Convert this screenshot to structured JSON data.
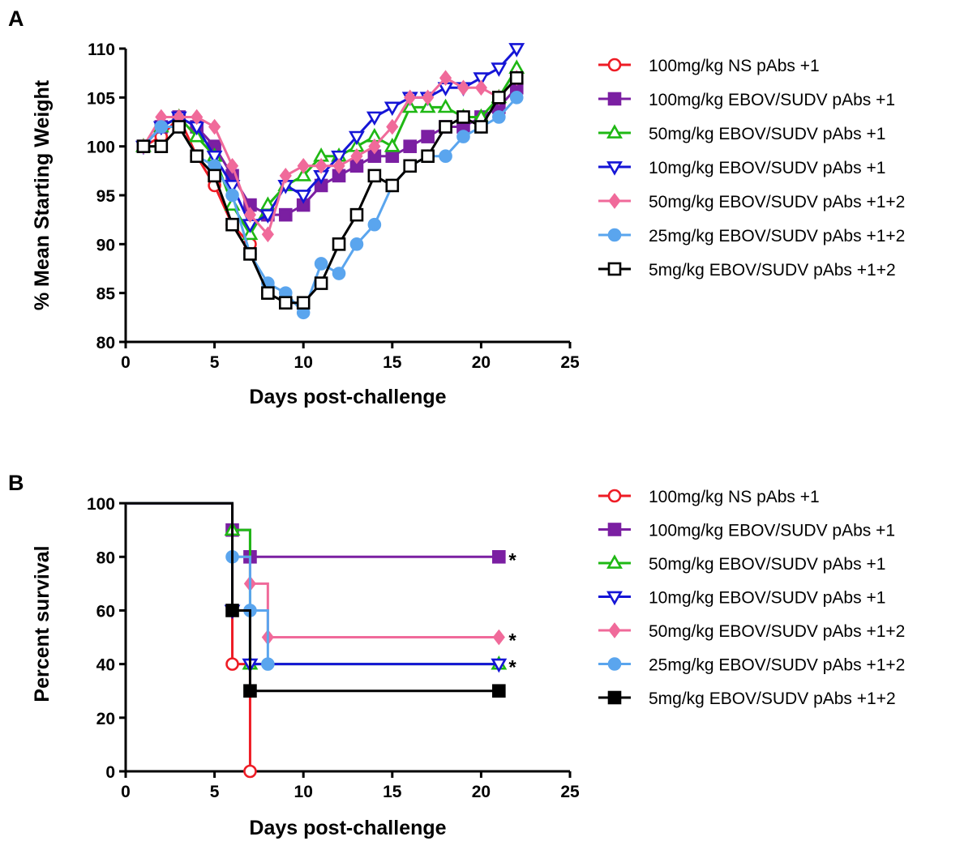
{
  "chart_data": [
    {
      "panel": "A",
      "type": "line",
      "xlabel": "Days post-challenge",
      "ylabel": "% Mean Starting Weight",
      "xlim": [
        0,
        25
      ],
      "ylim": [
        80,
        110
      ],
      "xticks": [
        "0",
        "5",
        "10",
        "15",
        "20",
        "25"
      ],
      "yticks": [
        "80",
        "85",
        "90",
        "95",
        "100",
        "105",
        "110"
      ],
      "grid": false,
      "legend_position": "right",
      "series": [
        {
          "name": "100mg/kg NS pAbs +1",
          "color": "#ee1c25",
          "marker": "circle-open",
          "x": [
            1,
            2,
            3,
            4,
            5,
            6,
            7
          ],
          "y": [
            100,
            101,
            103,
            99,
            96,
            92,
            90
          ]
        },
        {
          "name": "100mg/kg EBOV/SUDV pAbs +1",
          "color": "#7b1fa2",
          "marker": "square-filled",
          "x": [
            1,
            2,
            3,
            4,
            5,
            6,
            7,
            8,
            9,
            10,
            11,
            12,
            13,
            14,
            15,
            16,
            17,
            18,
            19,
            20,
            21,
            22
          ],
          "y": [
            100,
            102,
            103,
            102,
            100,
            97,
            94,
            93,
            93,
            94,
            96,
            97,
            98,
            99,
            99,
            100,
            101,
            102,
            102,
            103,
            104,
            106
          ]
        },
        {
          "name": "50mg/kg EBOV/SUDV pAbs +1",
          "color": "#1fb814",
          "marker": "triangle-up-open",
          "x": [
            1,
            2,
            3,
            4,
            5,
            6,
            7,
            8,
            9,
            10,
            11,
            12,
            13,
            14,
            15,
            16,
            17,
            18,
            19,
            20,
            21,
            22
          ],
          "y": [
            100,
            102,
            103,
            101,
            99,
            94,
            91,
            94,
            96,
            97,
            99,
            99,
            100,
            101,
            100,
            104,
            104,
            104,
            103,
            103,
            105,
            108
          ]
        },
        {
          "name": "10mg/kg EBOV/SUDV pAbs +1",
          "color": "#1515d6",
          "marker": "triangle-down-open",
          "x": [
            1,
            2,
            3,
            4,
            5,
            6,
            7,
            8,
            9,
            10,
            11,
            12,
            13,
            14,
            15,
            16,
            17,
            18,
            19,
            20,
            21,
            22
          ],
          "y": [
            100,
            102,
            103,
            102,
            99,
            96,
            92,
            93,
            96,
            95,
            97,
            99,
            101,
            103,
            104,
            105,
            105,
            106,
            106,
            107,
            108,
            110
          ]
        },
        {
          "name": "50mg/kg EBOV/SUDV pAbs +1+2",
          "color": "#f06a9a",
          "marker": "diamond-filled",
          "x": [
            1,
            2,
            3,
            4,
            5,
            6,
            7,
            8,
            9,
            10,
            11,
            12,
            13,
            14,
            15,
            16,
            17,
            18,
            19,
            20,
            21,
            22
          ],
          "y": [
            100,
            103,
            103,
            103,
            102,
            98,
            93,
            91,
            97,
            98,
            98,
            98,
            99,
            100,
            102,
            105,
            105,
            107,
            106,
            106,
            105,
            107
          ]
        },
        {
          "name": "25mg/kg EBOV/SUDV pAbs +1+2",
          "color": "#5aa5ee",
          "marker": "circle-filled",
          "x": [
            1,
            2,
            3,
            4,
            5,
            6,
            7,
            8,
            9,
            10,
            11,
            12,
            13,
            14,
            15,
            16,
            17,
            18,
            19,
            20,
            21,
            22
          ],
          "y": [
            100,
            102,
            102,
            99,
            98,
            95,
            89,
            86,
            85,
            83,
            88,
            87,
            90,
            92,
            96,
            98,
            99,
            99,
            101,
            102,
            103,
            105
          ]
        },
        {
          "name": "5mg/kg EBOV/SUDV pAbs +1+2",
          "color": "#000000",
          "marker": "square-open",
          "x": [
            1,
            2,
            3,
            4,
            5,
            6,
            7,
            8,
            9,
            10,
            11,
            12,
            13,
            14,
            15,
            16,
            17,
            18,
            19,
            20,
            21,
            22
          ],
          "y": [
            100,
            100,
            102,
            99,
            97,
            92,
            89,
            85,
            84,
            84,
            86,
            90,
            93,
            97,
            96,
            98,
            99,
            102,
            103,
            102,
            105,
            107
          ]
        }
      ]
    },
    {
      "panel": "B",
      "type": "line",
      "subtype": "step",
      "xlabel": "Days post-challenge",
      "ylabel": "Percent survival",
      "xlim": [
        0,
        25
      ],
      "ylim": [
        0,
        110
      ],
      "xticks": [
        "0",
        "5",
        "10",
        "15",
        "20",
        "25"
      ],
      "yticks": [
        "0",
        "20",
        "40",
        "60",
        "80",
        "100"
      ],
      "grid": false,
      "legend_position": "right",
      "series": [
        {
          "name": "100mg/kg NS pAbs +1",
          "color": "#ee1c25",
          "marker": "circle-open",
          "steps": [
            [
              0,
              100
            ],
            [
              6,
              40
            ],
            [
              7,
              0
            ]
          ],
          "end_x": 7,
          "star": ""
        },
        {
          "name": "100mg/kg EBOV/SUDV pAbs +1",
          "color": "#7b1fa2",
          "marker": "square-filled",
          "steps": [
            [
              0,
              100
            ],
            [
              6,
              90
            ],
            [
              7,
              80
            ]
          ],
          "end_x": 21,
          "star": "*"
        },
        {
          "name": "50mg/kg EBOV/SUDV pAbs +1",
          "color": "#1fb814",
          "marker": "triangle-up-open",
          "steps": [
            [
              0,
              100
            ],
            [
              6,
              90
            ],
            [
              7,
              40
            ]
          ],
          "end_x": 21,
          "star": "*"
        },
        {
          "name": "10mg/kg EBOV/SUDV pAbs +1",
          "color": "#1515d6",
          "marker": "triangle-down-open",
          "steps": [
            [
              0,
              100
            ],
            [
              6,
              60
            ],
            [
              7,
              40
            ]
          ],
          "end_x": 21,
          "star": ""
        },
        {
          "name": "50mg/kg EBOV/SUDV pAbs +1+2",
          "color": "#f06a9a",
          "marker": "diamond-filled",
          "steps": [
            [
              0,
              100
            ],
            [
              6,
              80
            ],
            [
              7,
              70
            ],
            [
              8,
              50
            ]
          ],
          "end_x": 21,
          "star": "*"
        },
        {
          "name": "25mg/kg EBOV/SUDV pAbs +1+2",
          "color": "#5aa5ee",
          "marker": "circle-filled",
          "steps": [
            [
              0,
              100
            ],
            [
              6,
              80
            ],
            [
              7,
              60
            ],
            [
              8,
              40
            ]
          ],
          "end_x": 8,
          "star": ""
        },
        {
          "name": "5mg/kg EBOV/SUDV pAbs +1+2",
          "color": "#000000",
          "marker": "square-filled",
          "steps": [
            [
              0,
              100
            ],
            [
              6,
              60
            ],
            [
              7,
              30
            ]
          ],
          "end_x": 21,
          "star": ""
        }
      ]
    }
  ]
}
